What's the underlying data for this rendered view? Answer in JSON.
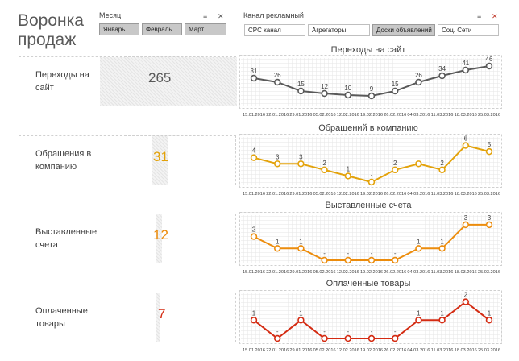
{
  "header": {
    "title": "Воронка продаж",
    "month_slicer": {
      "title": "Месяц",
      "items": [
        {
          "label": "Январь",
          "selected": true
        },
        {
          "label": "Февраль",
          "selected": true
        },
        {
          "label": "Март",
          "selected": true
        }
      ]
    },
    "channel_slicer": {
      "title": "Канал рекламный",
      "items": [
        {
          "label": "CPC канал",
          "selected": false
        },
        {
          "label": "Агрегаторы",
          "selected": false
        },
        {
          "label": "Доски объявлений",
          "selected": true
        },
        {
          "label": "Соц. Сети",
          "selected": false
        }
      ]
    },
    "icons": [
      "multiselect-icon",
      "clear-filter-icon"
    ]
  },
  "cards": [
    {
      "label": "Переходы на сайт",
      "value": "265",
      "bar_fraction": 1.0,
      "color": "#595959"
    },
    {
      "label": "Обращения в компанию",
      "value": "31",
      "bar_fraction": 0.117,
      "color": "#e3a20a"
    },
    {
      "label": "Выставленные счета",
      "value": "12",
      "bar_fraction": 0.045,
      "color": "#ec8c0c"
    },
    {
      "label": "Оплаченные товары",
      "value": "7",
      "bar_fraction": 0.026,
      "color": "#d42b12"
    }
  ],
  "chart_data": [
    {
      "type": "line",
      "title": "Переходы на сайт",
      "x": [
        "15.01.2016",
        "22.01.2016",
        "29.01.2016",
        "05.02.2016",
        "12.02.2016",
        "19.02.2016",
        "26.02.2016",
        "04.03.2016",
        "11.03.2016",
        "18.03.2016",
        "25.03.2016"
      ],
      "values": [
        31,
        26,
        15,
        12,
        10,
        9,
        15,
        26,
        34,
        41,
        46
      ],
      "labels": [
        "31",
        "26",
        "15",
        "12",
        "10",
        "9",
        "15",
        "26",
        "34",
        "41",
        "46"
      ],
      "ylim": [
        0,
        50
      ],
      "color": "#595959",
      "grid": true
    },
    {
      "type": "line",
      "title": "Обращений в компанию",
      "x": [
        "15.01.2016",
        "22.01.2016",
        "29.01.2016",
        "05.02.2016",
        "12.02.2016",
        "19.02.2016",
        "26.02.2016",
        "04.03.2016",
        "11.03.2016",
        "18.03.2016",
        "25.03.2016"
      ],
      "values": [
        4,
        3,
        3,
        2,
        1,
        0,
        2,
        3,
        2,
        6,
        5
      ],
      "labels": [
        "4",
        "3",
        "3",
        "2",
        "1",
        "-",
        "2",
        "",
        "2",
        "6",
        "5"
      ],
      "ylim": [
        0,
        6.6
      ],
      "color": "#e3a20a",
      "grid": true
    },
    {
      "type": "line",
      "title": "Выставленные счета",
      "x": [
        "15.01.2016",
        "22.01.2016",
        "29.01.2016",
        "05.02.2016",
        "12.02.2016",
        "19.02.2016",
        "26.02.2016",
        "04.03.2016",
        "11.03.2016",
        "18.03.2016",
        "25.03.2016"
      ],
      "values": [
        2,
        1,
        1,
        0,
        0,
        0,
        0,
        1,
        1,
        3,
        3
      ],
      "labels": [
        "2",
        "1",
        "1",
        "-",
        "-",
        "-",
        "-",
        "1",
        "1",
        "3",
        "3"
      ],
      "ylim": [
        0,
        3.4
      ],
      "color": "#ec8c0c",
      "grid": true
    },
    {
      "type": "line",
      "title": "Оплаченные товары",
      "x": [
        "15.01.2016",
        "22.01.2016",
        "29.01.2016",
        "05.02.2016",
        "12.02.2016",
        "19.02.2016",
        "26.02.2016",
        "04.03.2016",
        "11.03.2016",
        "18.03.2016",
        "25.03.2016"
      ],
      "values": [
        1,
        0,
        1,
        0,
        0,
        0,
        0,
        1,
        1,
        2,
        1
      ],
      "labels": [
        "1",
        "-",
        "1",
        "-",
        "-",
        "-",
        "-",
        "1",
        "1",
        "2",
        "1"
      ],
      "ylim": [
        0,
        2.2
      ],
      "color": "#d42b12",
      "grid": true
    }
  ]
}
